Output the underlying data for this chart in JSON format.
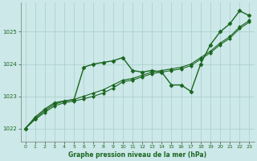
{
  "title": "Graphe pression niveau de la mer (hPa)",
  "bg_color": "#cce8e8",
  "plot_bg_color": "#cce8e8",
  "grid_color": "#aacccc",
  "line_color": "#1a6620",
  "xlim": [
    -0.5,
    23.5
  ],
  "ylim": [
    1021.6,
    1025.9
  ],
  "yticks": [
    1022,
    1023,
    1024,
    1025
  ],
  "xticks": [
    0,
    1,
    2,
    3,
    4,
    5,
    6,
    7,
    8,
    9,
    10,
    11,
    12,
    13,
    14,
    15,
    16,
    17,
    18,
    19,
    20,
    21,
    22,
    23
  ],
  "series1_x": [
    0,
    1,
    2,
    3,
    4,
    5,
    6,
    7,
    8,
    9,
    10,
    11,
    12,
    13,
    14,
    15,
    16,
    17,
    18,
    19,
    20,
    21,
    22,
    23
  ],
  "series1_y": [
    1022.0,
    1022.35,
    1022.6,
    1022.8,
    1022.85,
    1022.9,
    1023.9,
    1024.0,
    1024.05,
    1024.1,
    1024.2,
    1023.8,
    1023.75,
    1023.8,
    1023.75,
    1023.35,
    1023.35,
    1023.15,
    1024.0,
    1024.6,
    1025.0,
    1025.25,
    1025.65,
    1025.5
  ],
  "series2_x": [
    0,
    1,
    2,
    3,
    4,
    5,
    6,
    7,
    8,
    9,
    10,
    11,
    12,
    13,
    14,
    15,
    16,
    17,
    18,
    19,
    20,
    21,
    22,
    23
  ],
  "series2_y": [
    1022.0,
    1022.3,
    1022.55,
    1022.75,
    1022.85,
    1022.9,
    1023.0,
    1023.1,
    1023.2,
    1023.35,
    1023.5,
    1023.55,
    1023.65,
    1023.75,
    1023.8,
    1023.85,
    1023.9,
    1024.0,
    1024.2,
    1024.4,
    1024.65,
    1024.85,
    1025.15,
    1025.35
  ],
  "series3_x": [
    0,
    1,
    2,
    3,
    4,
    5,
    6,
    7,
    8,
    9,
    10,
    11,
    12,
    13,
    14,
    15,
    16,
    17,
    18,
    19,
    20,
    21,
    22,
    23
  ],
  "series3_y": [
    1022.0,
    1022.28,
    1022.5,
    1022.7,
    1022.8,
    1022.85,
    1022.92,
    1023.0,
    1023.1,
    1023.25,
    1023.45,
    1023.5,
    1023.6,
    1023.7,
    1023.75,
    1023.8,
    1023.85,
    1023.95,
    1024.15,
    1024.35,
    1024.6,
    1024.8,
    1025.1,
    1025.3
  ]
}
